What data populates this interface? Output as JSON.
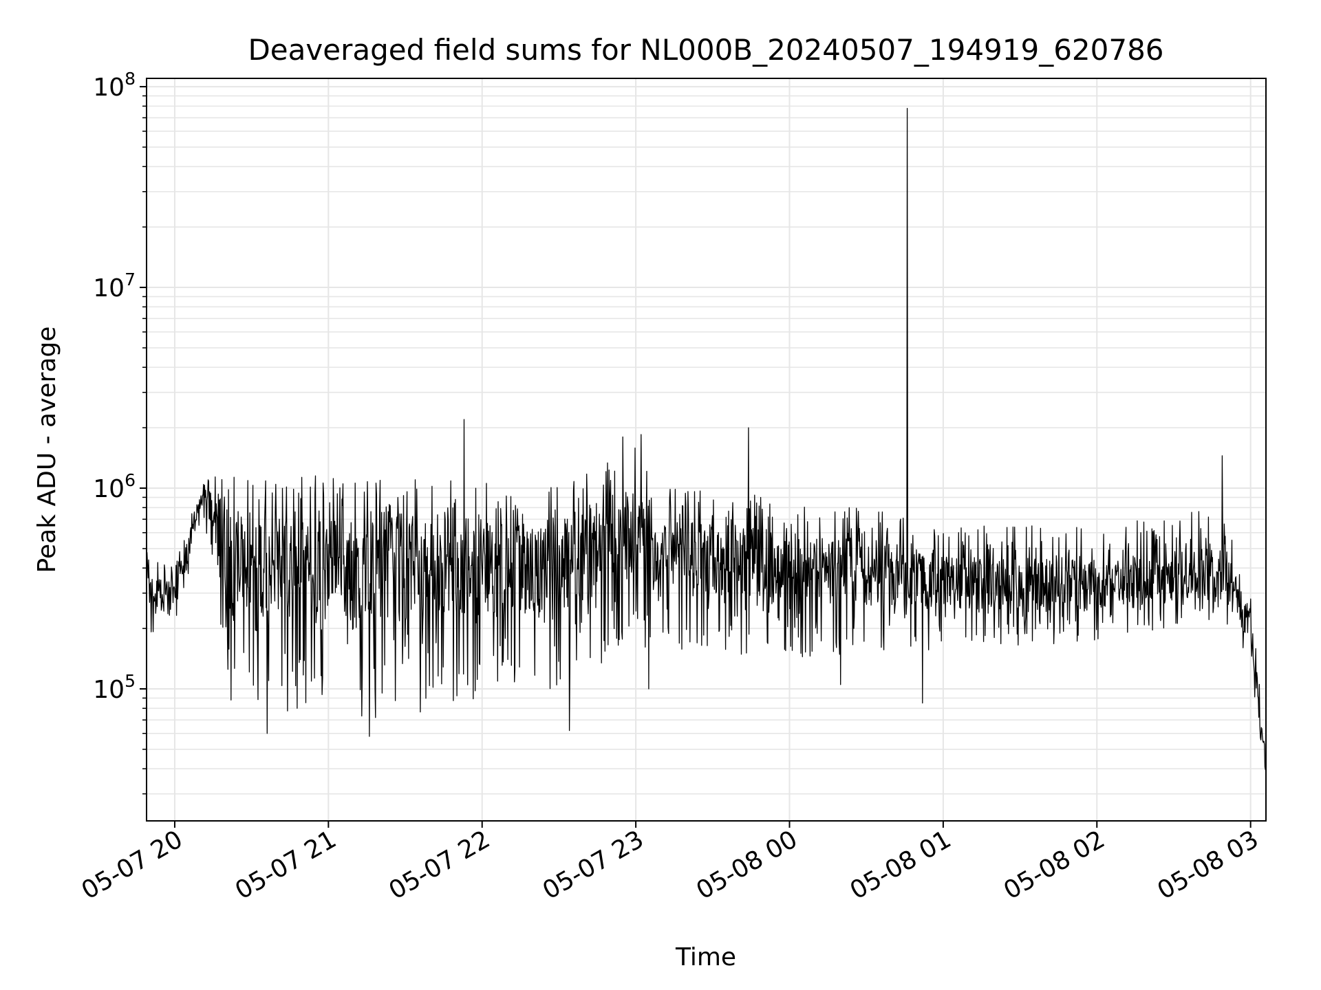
{
  "colors": {
    "line": "#000000",
    "grid": "#e6e6e6",
    "axes": "#000000",
    "background": "#ffffff"
  },
  "chart_data": {
    "type": "line",
    "title": "Deaveraged field sums for NL000B_20240507_194919_620786",
    "xlabel": "Time",
    "ylabel": "Peak ADU - average",
    "yscale": "log",
    "ylim": [
      22000,
      110000000
    ],
    "xlim": [
      "2024-05-07 19:49",
      "2024-05-08 03:06"
    ],
    "x_ticks": [
      "05-07 20",
      "05-07 21",
      "05-07 22",
      "05-07 23",
      "05-08 00",
      "05-08 01",
      "05-08 02",
      "05-08 03"
    ],
    "x_tick_times": [
      "2024-05-07 20:00",
      "2024-05-07 21:00",
      "2024-05-07 22:00",
      "2024-05-07 23:00",
      "2024-05-08 00:00",
      "2024-05-08 01:00",
      "2024-05-08 02:00",
      "2024-05-08 03:00"
    ],
    "y_ticks": [
      {
        "base": "10",
        "exp": "5",
        "value": 100000
      },
      {
        "base": "10",
        "exp": "6",
        "value": 1000000
      },
      {
        "base": "10",
        "exp": "7",
        "value": 10000000
      },
      {
        "base": "10",
        "exp": "8",
        "value": 100000000
      }
    ],
    "grid": true,
    "series_profile": [
      {
        "t": "2024-05-07 19:49",
        "low": 170000,
        "high": 480000,
        "mid": 300000
      },
      {
        "t": "2024-05-07 20:00",
        "low": 220000,
        "high": 420000,
        "mid": 290000
      },
      {
        "t": "2024-05-07 20:05",
        "low": 320000,
        "high": 650000,
        "mid": 480000
      },
      {
        "t": "2024-05-07 20:10",
        "low": 700000,
        "high": 1000000,
        "mid": 850000
      },
      {
        "t": "2024-05-07 20:15",
        "low": 400000,
        "high": 1200000,
        "mid": 800000
      },
      {
        "t": "2024-05-07 20:20",
        "low": 90000,
        "high": 1150000,
        "mid": 450000
      },
      {
        "t": "2024-05-07 21:00",
        "low": 70000,
        "high": 1200000,
        "mid": 400000
      },
      {
        "t": "2024-05-07 21:30",
        "low": 65000,
        "high": 1150000,
        "mid": 420000
      },
      {
        "t": "2024-05-07 22:00",
        "low": 90000,
        "high": 1100000,
        "mid": 420000
      },
      {
        "t": "2024-05-07 22:30",
        "low": 100000,
        "high": 1050000,
        "mid": 420000
      },
      {
        "t": "2024-05-07 23:00",
        "low": 150000,
        "high": 1700000,
        "mid": 550000
      },
      {
        "t": "2024-05-07 23:10",
        "low": 160000,
        "high": 1000000,
        "mid": 480000
      },
      {
        "t": "2024-05-08 00:00",
        "low": 140000,
        "high": 900000,
        "mid": 400000
      },
      {
        "t": "2024-05-08 00:30",
        "low": 140000,
        "high": 800000,
        "mid": 370000
      },
      {
        "t": "2024-05-08 01:00",
        "low": 160000,
        "high": 650000,
        "mid": 340000
      },
      {
        "t": "2024-05-08 02:00",
        "low": 170000,
        "high": 650000,
        "mid": 320000
      },
      {
        "t": "2024-05-08 02:50",
        "low": 220000,
        "high": 800000,
        "mid": 400000
      },
      {
        "t": "2024-05-08 03:00",
        "low": 120000,
        "high": 300000,
        "mid": 200000
      },
      {
        "t": "2024-05-08 03:06",
        "low": 30000,
        "high": 60000,
        "mid": 40000
      }
    ],
    "spikes": [
      {
        "t": "2024-05-07 20:22",
        "value": 88000
      },
      {
        "t": "2024-05-07 20:36",
        "value": 60000
      },
      {
        "t": "2024-05-07 21:16",
        "value": 58000
      },
      {
        "t": "2024-05-07 21:53",
        "value": 2200000
      },
      {
        "t": "2024-05-07 22:34",
        "value": 62000
      },
      {
        "t": "2024-05-07 22:55",
        "value": 1800000
      },
      {
        "t": "2024-05-07 23:02",
        "value": 1850000
      },
      {
        "t": "2024-05-07 23:05",
        "value": 100000
      },
      {
        "t": "2024-05-07 23:44",
        "value": 2000000
      },
      {
        "t": "2024-05-08 00:20",
        "value": 105000
      },
      {
        "t": "2024-05-08 00:46",
        "value": 78000000
      },
      {
        "t": "2024-05-08 00:52",
        "value": 85000
      },
      {
        "t": "2024-05-08 02:49",
        "value": 1450000
      }
    ]
  }
}
